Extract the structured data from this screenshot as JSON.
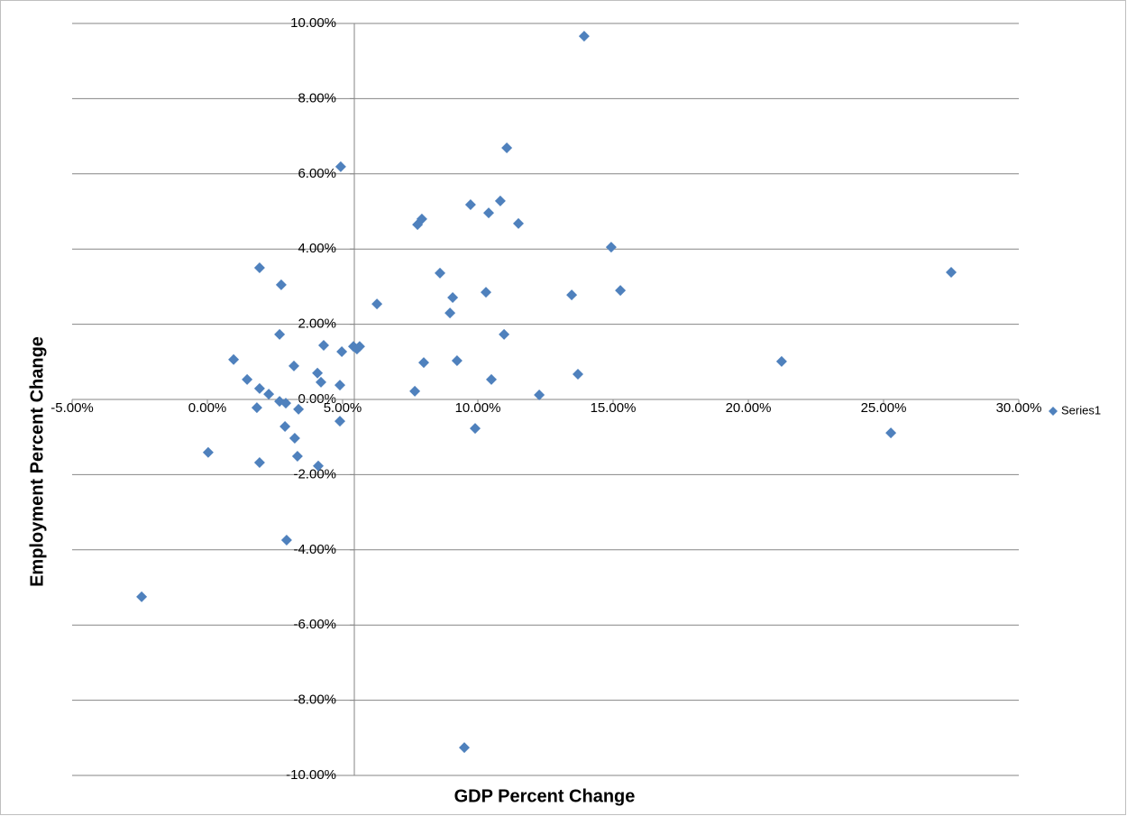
{
  "chart_data": {
    "type": "scatter",
    "x_label": "GDP Percent Change",
    "y_label": "Employment Percent Change",
    "xlim": [
      -5,
      30
    ],
    "xticks": [
      {
        "value": -5,
        "label": "-5.00%"
      },
      {
        "value": 0,
        "label": "0.00%"
      },
      {
        "value": 5,
        "label": "5.00%"
      },
      {
        "value": 10,
        "label": "10.00%"
      },
      {
        "value": 15,
        "label": "15.00%"
      },
      {
        "value": 20,
        "label": "20.00%"
      },
      {
        "value": 25,
        "label": "25.00%"
      },
      {
        "value": 30,
        "label": "30.00%"
      }
    ],
    "ylim": [
      -10,
      10
    ],
    "yticks": [
      {
        "value": -10,
        "label": "-10.00%"
      },
      {
        "value": -8,
        "label": "-8.00%"
      },
      {
        "value": -6,
        "label": "-6.00%"
      },
      {
        "value": -4,
        "label": "-4.00%"
      },
      {
        "value": -2,
        "label": "-2.00%"
      },
      {
        "value": 0,
        "label": "0.00%"
      },
      {
        "value": 2,
        "label": "2.00%"
      },
      {
        "value": 4,
        "label": "4.00%"
      },
      {
        "value": 6,
        "label": "6.00%"
      },
      {
        "value": 8,
        "label": "8.00%"
      },
      {
        "value": 10,
        "label": "10.00%"
      }
    ],
    "grid": true,
    "legend": "right",
    "series": [
      {
        "name": "Series1",
        "color": "#4f81bd",
        "x": [
          -2.43,
          0.03,
          0.97,
          1.47,
          1.93,
          2.27,
          1.83,
          1.93,
          1.93,
          2.73,
          2.67,
          2.67,
          2.9,
          2.87,
          3.23,
          3.37,
          3.33,
          2.93,
          3.2,
          4.07,
          4.2,
          4.3,
          4.1,
          4.9,
          4.9,
          4.97,
          4.93,
          5.4,
          5.53,
          5.63,
          6.27,
          7.67,
          7.77,
          7.93,
          8.0,
          8.6,
          9.07,
          8.97,
          9.23,
          9.73,
          9.9,
          9.5,
          10.3,
          10.4,
          10.5,
          10.83,
          10.97,
          11.07,
          11.5,
          12.27,
          13.47,
          13.7,
          13.93,
          14.93,
          15.27,
          21.23,
          25.27,
          27.5
        ],
        "y": [
          -5.25,
          -1.41,
          1.06,
          0.53,
          0.29,
          0.14,
          -0.22,
          -1.68,
          3.5,
          3.05,
          1.73,
          -0.05,
          -0.1,
          -0.72,
          -1.03,
          -0.26,
          -1.51,
          -3.74,
          0.89,
          0.7,
          0.46,
          1.44,
          -1.77,
          0.38,
          -0.58,
          1.27,
          6.19,
          1.41,
          1.34,
          1.41,
          2.54,
          0.22,
          4.65,
          4.8,
          0.98,
          3.36,
          2.71,
          2.3,
          1.03,
          5.18,
          -0.77,
          -9.26,
          2.85,
          4.96,
          0.53,
          5.28,
          1.73,
          6.69,
          4.68,
          0.12,
          2.78,
          0.67,
          9.66,
          4.05,
          2.9,
          1.01,
          -0.89,
          3.38
        ]
      }
    ]
  }
}
